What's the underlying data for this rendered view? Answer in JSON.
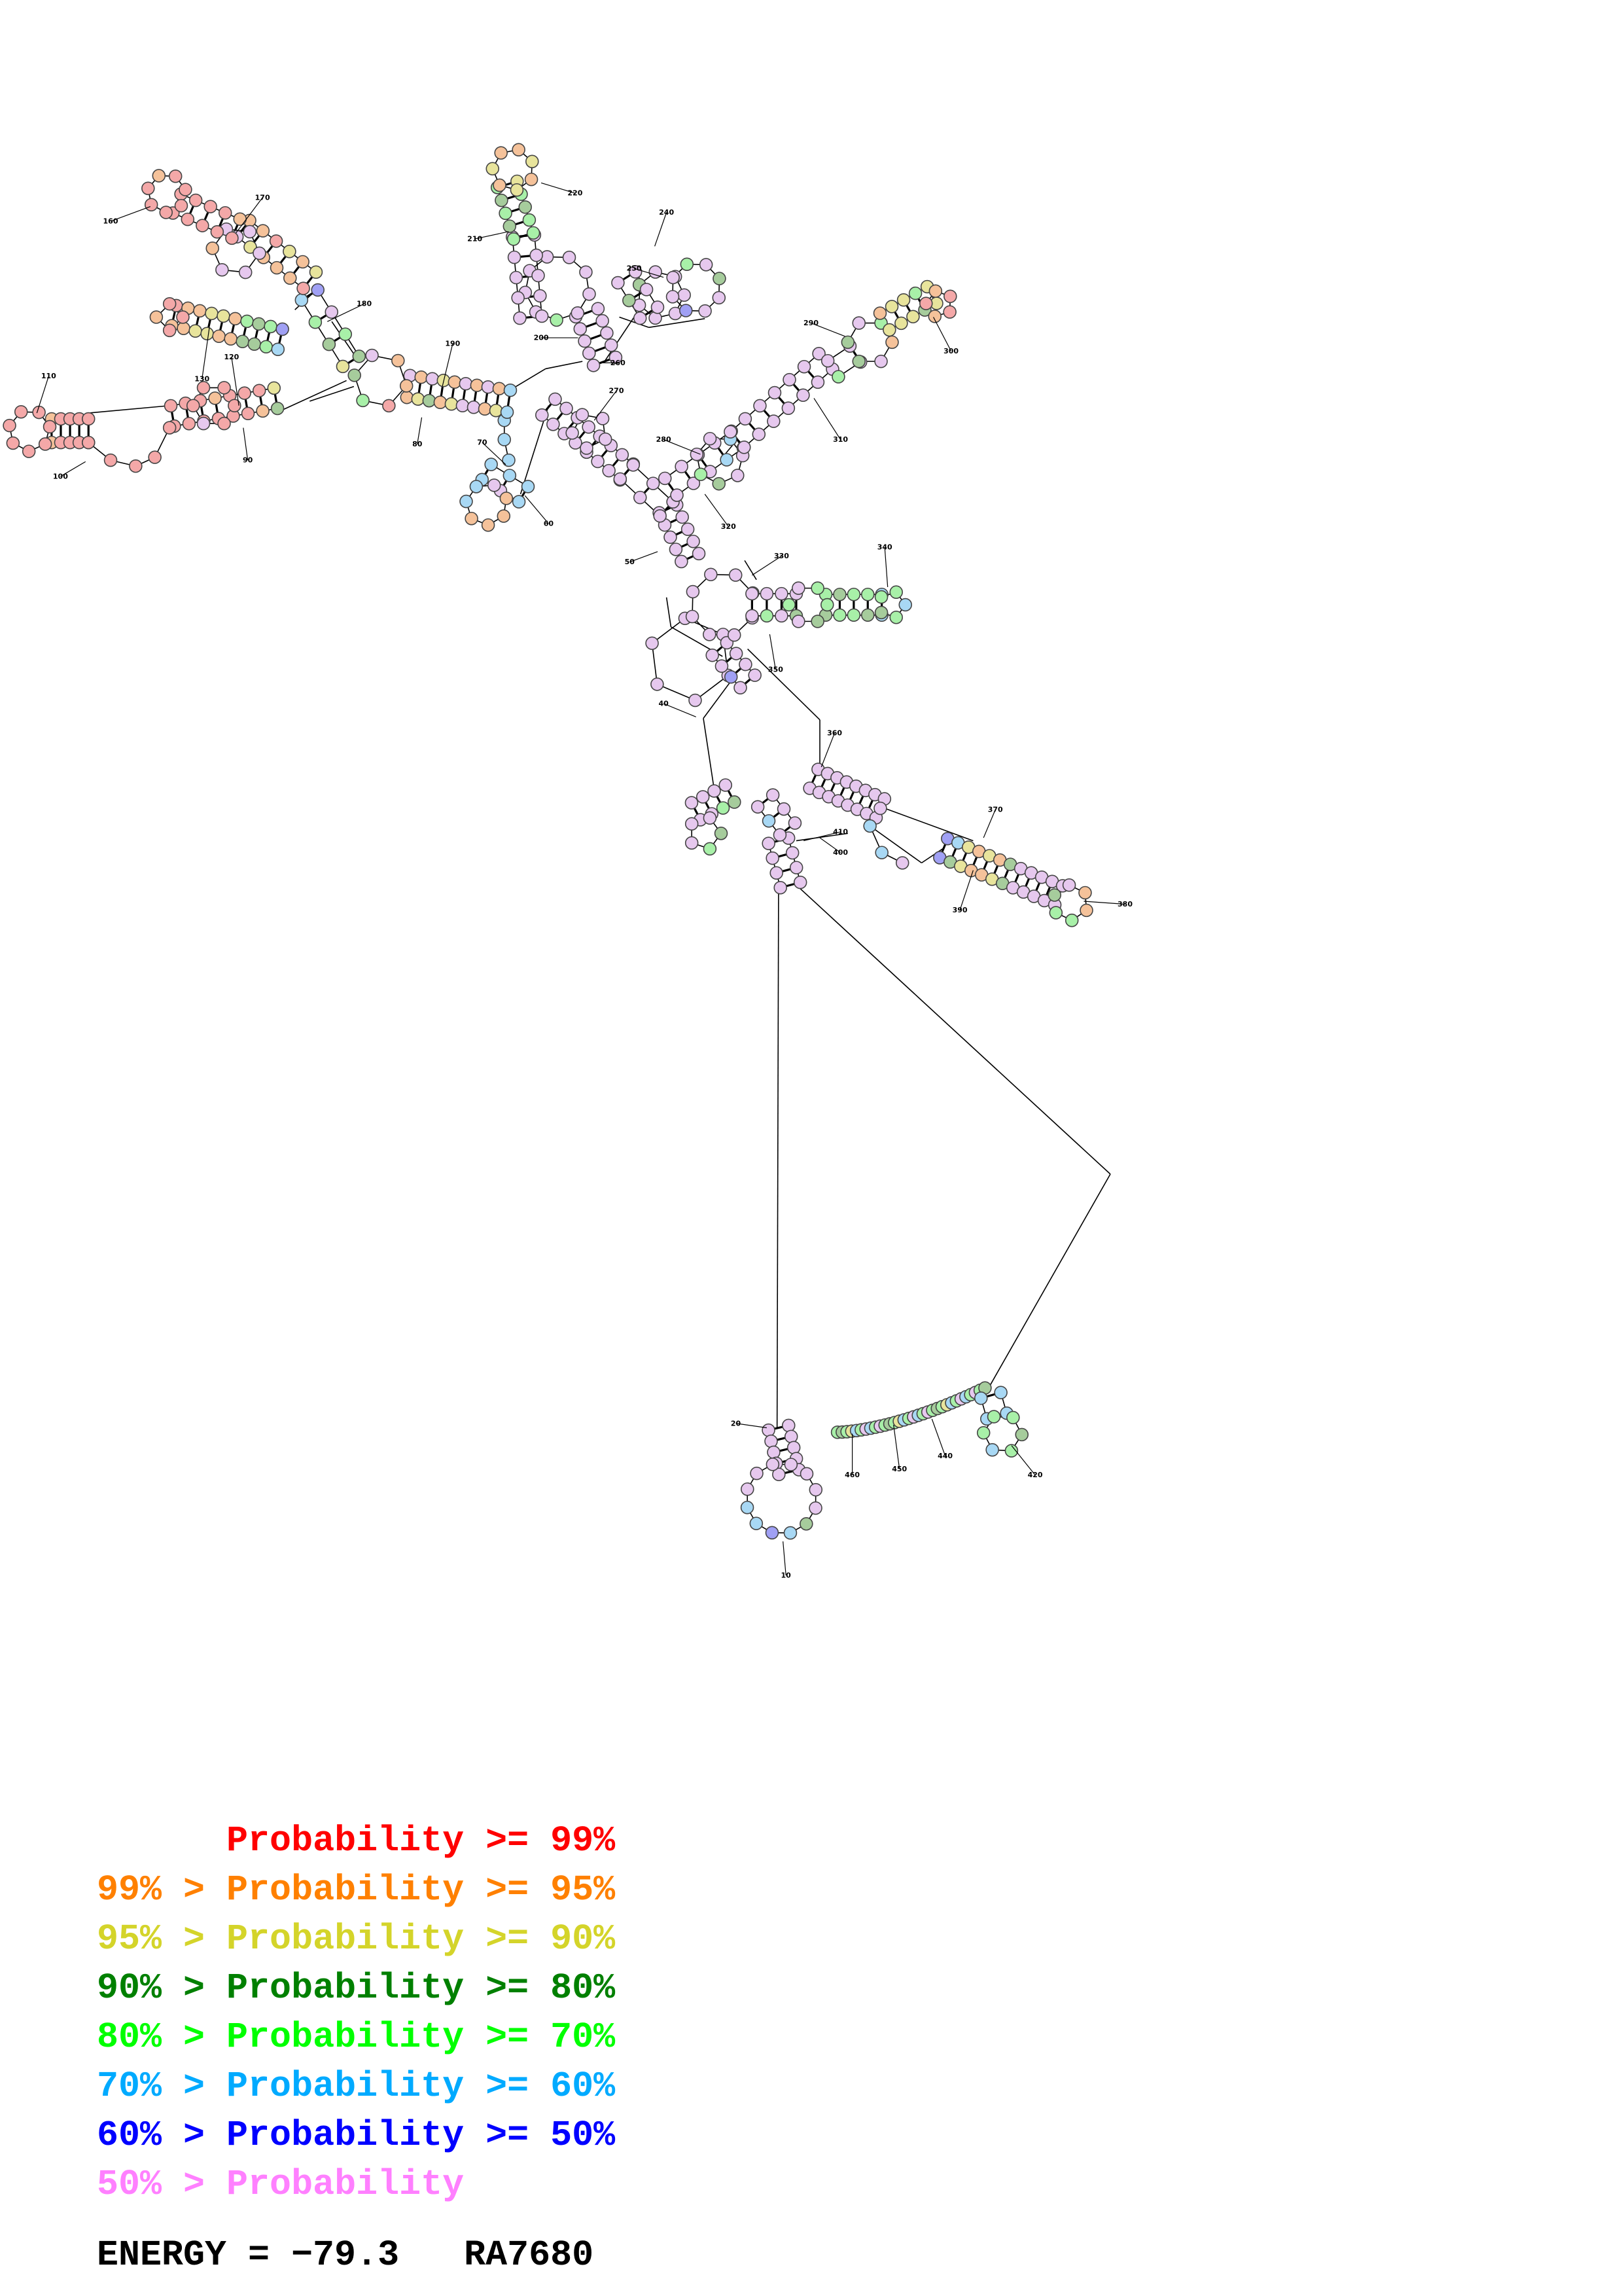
{
  "legend": [
    {
      "prefix": "    ",
      "label": "Probability >= 99%",
      "color": "#ff0000"
    },
    {
      "prefix": "99% > ",
      "label": "Probability >= 95%",
      "color": "#ff8000"
    },
    {
      "prefix": "95% > ",
      "label": "Probability >= 90%",
      "color": "#d4d42a"
    },
    {
      "prefix": "90% > ",
      "label": "Probability >= 80%",
      "color": "#008000"
    },
    {
      "prefix": "80% > ",
      "label": "Probability >= 70%",
      "color": "#00ff00"
    },
    {
      "prefix": "70% > ",
      "label": "Probability >= 60%",
      "color": "#00aaff"
    },
    {
      "prefix": "60% > ",
      "label": "Probability >= 50%",
      "color": "#0000ff"
    },
    {
      "prefix": "50% > ",
      "label": "Probability",
      "color": "#ff80ff"
    }
  ],
  "energy_label": "ENERGY = −79.3",
  "molecule_id": "RA7680",
  "position_labels": [
    "10",
    "20",
    "40",
    "50",
    "60",
    "70",
    "80",
    "90",
    "100",
    "110",
    "120",
    "130",
    "160",
    "170",
    "180",
    "190",
    "200",
    "210",
    "220",
    "240",
    "250",
    "260",
    "270",
    "280",
    "290",
    "300",
    "310",
    "320",
    "330",
    "340",
    "350",
    "360",
    "370",
    "380",
    "390",
    "400",
    "410",
    "420",
    "440",
    "450",
    "460"
  ],
  "fill_colors": {
    "red": "#f4a8a8",
    "orange": "#f5c29a",
    "yellow": "#e8e49c",
    "darkgreen": "#a6cc9c",
    "green": "#a8f0a8",
    "cyan": "#a8d8f4",
    "blue": "#a0a0f4",
    "pink": "#e6c8ee"
  }
}
